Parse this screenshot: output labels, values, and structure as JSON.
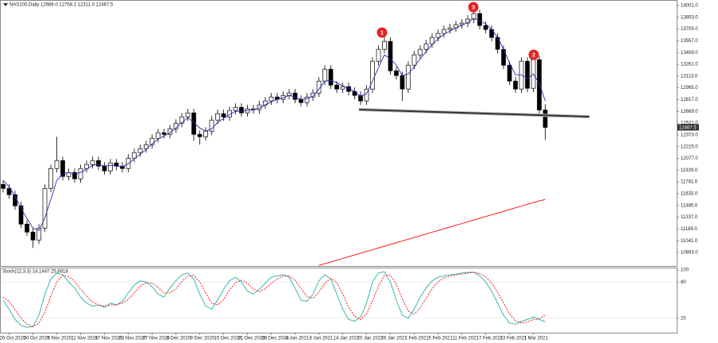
{
  "chart_data": [
    {
      "type": "candlestick",
      "title": "NAS100,Daily  12686.0 12758.2 12311.0 12467.5",
      "categories": [
        null,
        "26 Oct 2020",
        null,
        null,
        null,
        "30 Oct 2020",
        null,
        null,
        null,
        "5 Nov 2020",
        null,
        null,
        null,
        "11 Nov 2020",
        null,
        null,
        null,
        "17 Nov 2020",
        null,
        null,
        null,
        "23 Nov 2020",
        null,
        null,
        null,
        "27 Nov 2020",
        null,
        null,
        null,
        "3 Dec 2020",
        null,
        null,
        null,
        "9 Dec 2020",
        null,
        null,
        null,
        "15 Dec 2020",
        null,
        null,
        null,
        "21 Dec 2020",
        null,
        null,
        null,
        "28 Dec 2020",
        null,
        null,
        null,
        "4 Jan 2021",
        null,
        null,
        null,
        "8 Jan 2021",
        null,
        null,
        null,
        "14 Jan 2021",
        null,
        null,
        null,
        "20 Jan 2021",
        null,
        null,
        null,
        "26 Jan 2021",
        null,
        null,
        null,
        "1 Feb 2021",
        null,
        null,
        null,
        "5 Feb 2021",
        null,
        null,
        null,
        "11 Feb 2021",
        null,
        null,
        null,
        "17 Feb 2021",
        null,
        null,
        null,
        "23 Feb 2021",
        null,
        null,
        null,
        "1 Mar 2021",
        null,
        null
      ],
      "open": [
        11750,
        11700,
        11620,
        11480,
        11250,
        11150,
        11050,
        11200,
        11700,
        11950,
        12050,
        11850,
        11900,
        11820,
        11950,
        12000,
        12050,
        11980,
        11920,
        12020,
        11980,
        11950,
        12080,
        12150,
        12200,
        12250,
        12330,
        12400,
        12380,
        12450,
        12520,
        12600,
        12650,
        12380,
        12350,
        12420,
        12560,
        12640,
        12600,
        12680,
        12720,
        12650,
        12700,
        12690,
        12750,
        12800,
        12850,
        12820,
        12870,
        12900,
        12820,
        12780,
        12850,
        12900,
        13050,
        13200,
        13000,
        12950,
        12980,
        12920,
        12870,
        12800,
        12950,
        13300,
        13450,
        13550,
        13180,
        13120,
        12950,
        13250,
        13380,
        13450,
        13520,
        13600,
        13650,
        13700,
        13720,
        13760,
        13780,
        13830,
        13900,
        13750,
        13700,
        13600,
        13450,
        13250,
        13050,
        12950,
        13300,
        12960,
        13320,
        12686
      ],
      "high": [
        11800,
        11750,
        11670,
        11530,
        11300,
        11200,
        11250,
        11750,
        12000,
        12350,
        12100,
        11950,
        11950,
        12000,
        12050,
        12100,
        12100,
        12030,
        12070,
        12070,
        12030,
        12130,
        12200,
        12250,
        12300,
        12380,
        12450,
        12450,
        12500,
        12570,
        12650,
        12700,
        12700,
        12430,
        12470,
        12610,
        12690,
        12690,
        12730,
        12770,
        12770,
        12750,
        12750,
        12800,
        12850,
        12900,
        12900,
        12920,
        12950,
        12950,
        12870,
        12900,
        12950,
        13100,
        13250,
        13250,
        13050,
        13030,
        13030,
        12970,
        12920,
        13000,
        13350,
        13500,
        13630,
        13600,
        13230,
        13170,
        13300,
        13430,
        13500,
        13570,
        13650,
        13700,
        13750,
        13770,
        13810,
        13830,
        13880,
        14000,
        13950,
        13800,
        13750,
        13650,
        13500,
        13300,
        13100,
        13350,
        13350,
        13400,
        13370,
        12758.2
      ],
      "low": [
        11650,
        11570,
        11430,
        11200,
        11100,
        10950,
        11000,
        11150,
        11650,
        11900,
        11800,
        11800,
        11770,
        11770,
        11900,
        11950,
        11930,
        11870,
        11870,
        11930,
        11900,
        11900,
        12030,
        12100,
        12150,
        12200,
        12280,
        12330,
        12330,
        12400,
        12470,
        12550,
        12300,
        12250,
        12300,
        12370,
        12510,
        12550,
        12550,
        12630,
        12600,
        12600,
        12640,
        12640,
        12700,
        12750,
        12770,
        12770,
        12820,
        12770,
        12730,
        12730,
        12800,
        12850,
        13000,
        12950,
        12900,
        12900,
        12870,
        12820,
        12750,
        12750,
        12900,
        13250,
        13400,
        13130,
        13070,
        12800,
        12900,
        13200,
        13330,
        13400,
        13470,
        13550,
        13600,
        13650,
        13670,
        13710,
        13730,
        13780,
        13700,
        13650,
        13550,
        13400,
        13200,
        13000,
        12900,
        12900,
        12910,
        12910,
        12636,
        12311
      ],
      "close": [
        11700,
        11620,
        11480,
        11250,
        11150,
        11050,
        11200,
        11700,
        11950,
        12050,
        11850,
        11900,
        11820,
        11950,
        12000,
        12050,
        11980,
        11920,
        12020,
        11980,
        11950,
        12080,
        12150,
        12200,
        12250,
        12330,
        12400,
        12380,
        12450,
        12520,
        12600,
        12650,
        12380,
        12350,
        12420,
        12560,
        12640,
        12600,
        12680,
        12720,
        12650,
        12700,
        12690,
        12750,
        12800,
        12850,
        12820,
        12870,
        12900,
        12820,
        12780,
        12850,
        12900,
        13050,
        13200,
        13000,
        12950,
        12980,
        12920,
        12870,
        12800,
        12950,
        13300,
        13450,
        13550,
        13180,
        13120,
        12950,
        13250,
        13380,
        13450,
        13520,
        13600,
        13650,
        13700,
        13720,
        13760,
        13780,
        13830,
        13900,
        13750,
        13700,
        13600,
        13450,
        13250,
        13050,
        12950,
        13300,
        12960,
        13320,
        12686,
        12467.5
      ],
      "up_color": "#ffffff",
      "down_color": "#000000",
      "outline_color": "#000000",
      "series": [
        {
          "color": "#2b2bb8",
          "values": [
            11800,
            11720,
            11600,
            11450,
            11320,
            11200,
            11170,
            11330,
            11560,
            11800,
            11880,
            11900,
            11880,
            11900,
            11940,
            11990,
            12000,
            11980,
            11990,
            11980,
            11970,
            12010,
            12070,
            12130,
            12190,
            12260,
            12320,
            12360,
            12400,
            12460,
            12530,
            12590,
            12530,
            12460,
            12420,
            12450,
            12530,
            12580,
            12630,
            12670,
            12670,
            12680,
            12690,
            12710,
            12750,
            12790,
            12820,
            12840,
            12870,
            12850,
            12820,
            12830,
            12860,
            12950,
            13050,
            13060,
            13030,
            12990,
            12960,
            12920,
            12860,
            12890,
            13050,
            13220,
            13380,
            13330,
            13250,
            13120,
            13140,
            13230,
            13330,
            13420,
            13510,
            13580,
            13640,
            13680,
            13720,
            13750,
            13790,
            13840,
            13810,
            13770,
            13700,
            13600,
            13450,
            13280,
            13130,
            13130,
            13080,
            13140,
            13020,
            12800
          ]
        },
        {
          "color": "#ff0000",
          "values": [
            null,
            null,
            null,
            null,
            null,
            null,
            null,
            null,
            null,
            null,
            null,
            null,
            null,
            null,
            null,
            null,
            null,
            null,
            null,
            null,
            null,
            null,
            null,
            null,
            null,
            null,
            null,
            null,
            null,
            null,
            null,
            null,
            null,
            null,
            null,
            null,
            null,
            null,
            null,
            null,
            null,
            null,
            null,
            null,
            null,
            null,
            null,
            null,
            null,
            null,
            null,
            null,
            null,
            10730,
            10752,
            10774,
            10796,
            10818,
            10840,
            10862,
            10884,
            10906,
            10928,
            10950,
            10972,
            10994,
            11016,
            11038,
            11060,
            11082,
            11104,
            11126,
            11148,
            11170,
            11192,
            11214,
            11236,
            11258,
            11280,
            11302,
            11324,
            11346,
            11368,
            11390,
            11412,
            11434,
            11456,
            11478,
            11500,
            11522,
            11542,
            11560
          ]
        }
      ],
      "annotations": [
        "1",
        "2",
        "3"
      ],
      "ylim": [
        10723,
        14051
      ],
      "yticks": [
        {
          "value": 10893,
          "label": "10893.0"
        },
        {
          "value": 11041,
          "label": "11041.0"
        },
        {
          "value": 11189,
          "label": "11189.0"
        },
        {
          "value": 11337,
          "label": "11337.0"
        },
        {
          "value": 11485,
          "label": "11485.0"
        },
        {
          "value": 11633,
          "label": "11633.0"
        },
        {
          "value": 11781,
          "label": "11781.0"
        },
        {
          "value": 11929,
          "label": "11929.0"
        },
        {
          "value": 12077,
          "label": "12077.0"
        },
        {
          "value": 12225,
          "label": "12225.0"
        },
        {
          "value": 12373,
          "label": "12373.0"
        },
        {
          "value": 12521,
          "label": "12521.0"
        },
        {
          "value": 12669,
          "label": "12669.0"
        },
        {
          "value": 12817,
          "label": "12817.0"
        },
        {
          "value": 12965,
          "label": "12965.0"
        },
        {
          "value": 13113,
          "label": "13113.0"
        },
        {
          "value": 13261,
          "label": "13261.0"
        },
        {
          "value": 13409,
          "label": "13409.0"
        },
        {
          "value": 13557,
          "label": "13557.0"
        },
        {
          "value": 13705,
          "label": "13705.0"
        },
        {
          "value": 13853,
          "label": "13853.0"
        },
        {
          "value": 14001,
          "label": "14001.0"
        }
      ],
      "grid": false
    },
    {
      "type": "line",
      "title": "Stoch(12,3,3) 14.1447 25.6618",
      "series": [
        {
          "color": "#20b2aa",
          "dash": false,
          "values": [
            50,
            35,
            18,
            8,
            5,
            6,
            25,
            60,
            85,
            95,
            92,
            80,
            70,
            55,
            45,
            40,
            42,
            38,
            45,
            42,
            48,
            62,
            75,
            82,
            80,
            72,
            60,
            55,
            70,
            82,
            92,
            95,
            85,
            60,
            40,
            35,
            50,
            68,
            82,
            88,
            80,
            65,
            60,
            68,
            78,
            88,
            90,
            92,
            88,
            70,
            50,
            48,
            60,
            82,
            92,
            85,
            60,
            35,
            18,
            15,
            22,
            45,
            80,
            95,
            97,
            80,
            50,
            25,
            20,
            35,
            55,
            70,
            82,
            88,
            90,
            92,
            93,
            95,
            96,
            96,
            90,
            80,
            65,
            45,
            25,
            12,
            10,
            15,
            18,
            22,
            18,
            14.1447
          ]
        },
        {
          "color": "#ff0000",
          "dash": true,
          "values": [
            55,
            48,
            34,
            20,
            10,
            6,
            12,
            30,
            57,
            80,
            91,
            89,
            81,
            68,
            57,
            47,
            42,
            40,
            42,
            42,
            45,
            51,
            62,
            73,
            79,
            78,
            71,
            62,
            62,
            69,
            81,
            90,
            91,
            80,
            62,
            45,
            42,
            51,
            67,
            79,
            83,
            78,
            68,
            64,
            69,
            78,
            85,
            90,
            90,
            83,
            69,
            56,
            53,
            63,
            78,
            86,
            79,
            60,
            38,
            23,
            18,
            27,
            49,
            73,
            91,
            91,
            76,
            52,
            32,
            27,
            37,
            53,
            69,
            80,
            87,
            90,
            92,
            93,
            95,
            96,
            94,
            89,
            78,
            63,
            45,
            27,
            16,
            12,
            14,
            18,
            19,
            25.6618
          ]
        }
      ],
      "ylim": [
        0,
        100
      ],
      "yticks": [
        20,
        80,
        100
      ],
      "grid": true
    }
  ]
}
